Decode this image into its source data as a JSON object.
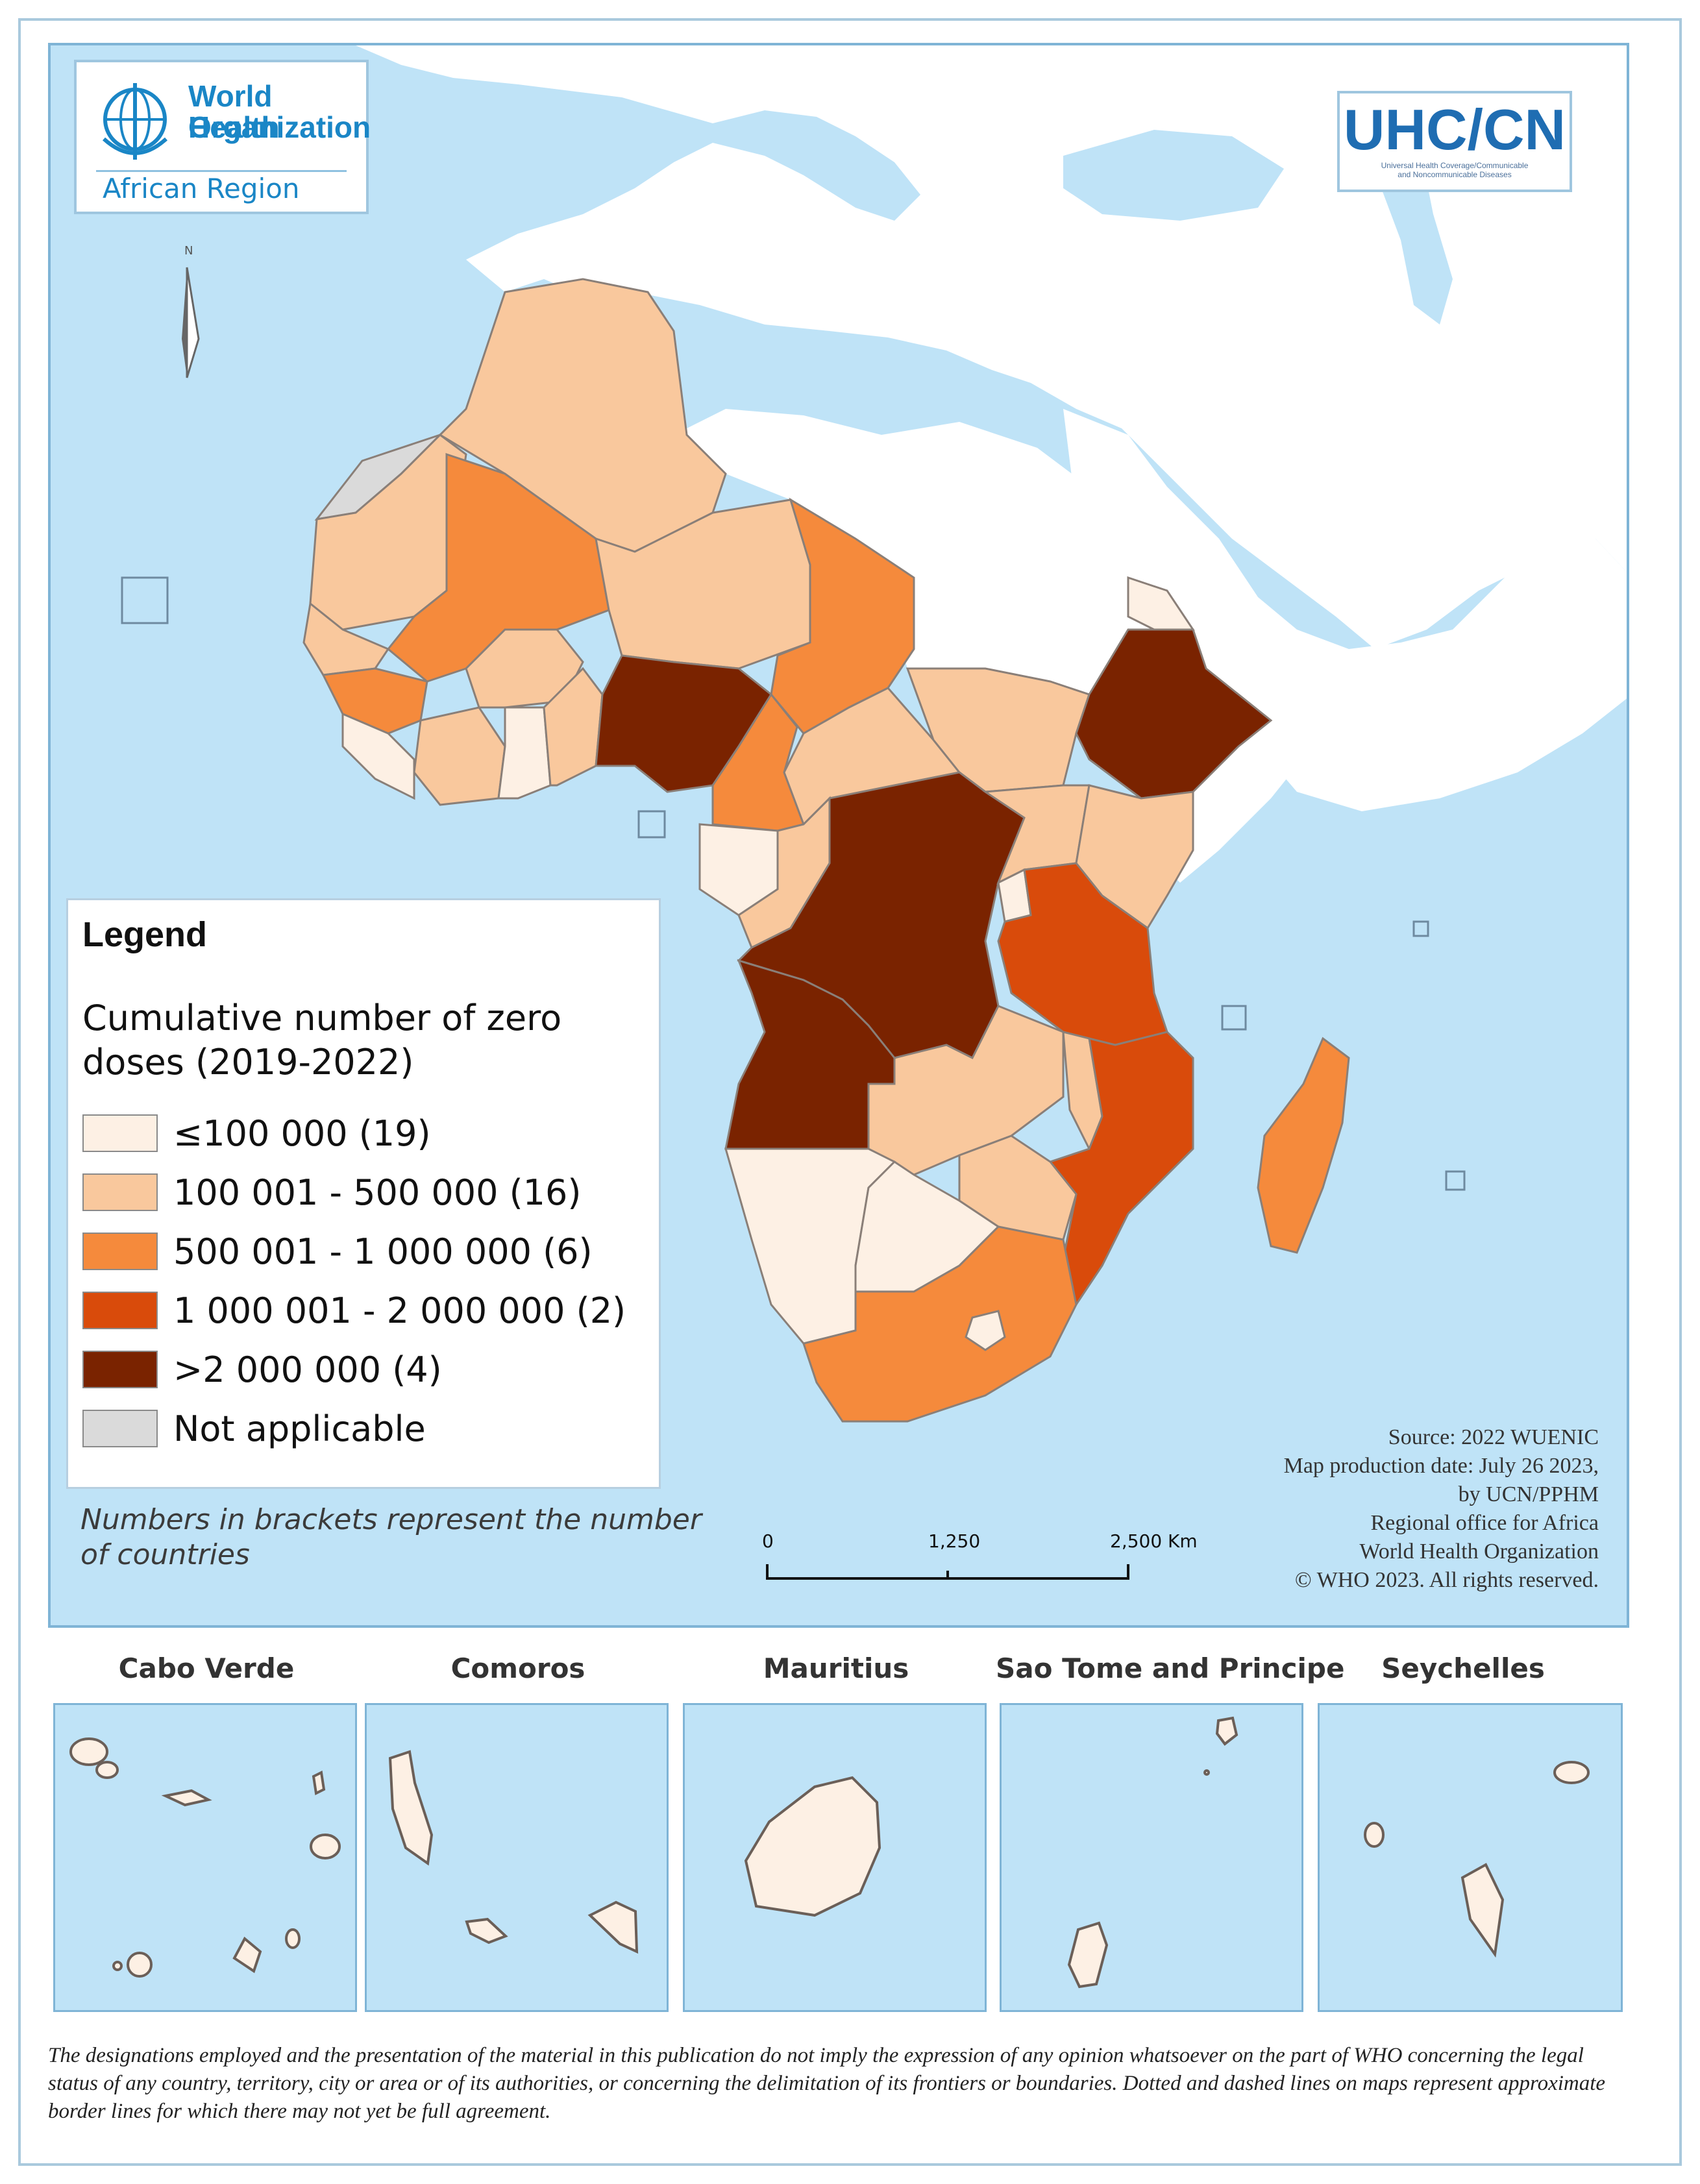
{
  "who_logo": {
    "line1": "World Health",
    "line2": "Organization",
    "region": "African Region",
    "icon": "who-emblem-icon"
  },
  "uhc_logo": {
    "title": "UHC/CN",
    "subtitle_line1": "Universal Health Coverage/Communicable",
    "subtitle_line2": "and Noncommunicable Diseases"
  },
  "north_arrow": {
    "label": "N",
    "icon": "north-arrow-icon"
  },
  "legend": {
    "heading": "Legend",
    "title_line1": "Cumulative number of zero",
    "title_line2": "doses (2019-2022)",
    "classes": [
      {
        "label": "≤100 000 (19)",
        "color": "#fdf0e4"
      },
      {
        "label": "100 001 - 500 000 (16)",
        "color": "#f9c89d"
      },
      {
        "label": "500 001 - 1 000 000 (6)",
        "color": "#f58a3c"
      },
      {
        "label": "1 000 001 - 2 000 000 (2)",
        "color": "#d94b0b"
      },
      {
        "label": ">2 000 000 (4)",
        "color": "#7a2300"
      },
      {
        "label": "Not applicable",
        "color": "#dadada"
      }
    ],
    "note_line1": "Numbers in brackets represent the number",
    "note_line2": "of countries"
  },
  "source": {
    "line1": "Source: 2022 WUENIC",
    "line2": "Map production date: July 26 2023,",
    "line3": "by UCN/PPHM",
    "line4": "Regional office for Africa",
    "line5": "World Health Organization",
    "line6": "© WHO 2023. All rights reserved."
  },
  "scale_bar": {
    "labels": [
      "0",
      "1,250",
      "2,500 Km"
    ]
  },
  "insets": [
    {
      "name": "Cabo Verde"
    },
    {
      "name": "Comoros"
    },
    {
      "name": "Mauritius"
    },
    {
      "name": "Sao Tome and Principe"
    },
    {
      "name": "Seychelles"
    }
  ],
  "colors": {
    "sea": "#bfe3f7",
    "land_outside": "#ffffff",
    "border": "#8a7f78",
    "island": "#fdf0e4"
  },
  "disclaimer": "The designations employed and the presentation of the material in this publication do not imply the expression of any opinion whatsoever on the part of WHO concerning the legal status of any country, territory, city or area or of its authorities, or concerning the delimitation of its frontiers or boundaries. Dotted and dashed lines on maps represent approximate border lines for which there may not yet be full agreement."
}
